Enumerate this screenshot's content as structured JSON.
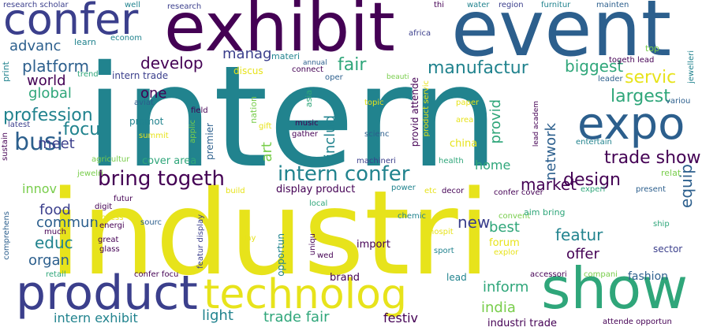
{
  "palette": {
    "dark": "#440154",
    "indigo": "#3b3f8c",
    "blue": "#2c5f8d",
    "teal": "#21838e",
    "green": "#2fa67a",
    "lime": "#78cd4b",
    "yellow": "#e7e31b"
  },
  "words": [
    {
      "text": "intern",
      "color": "#21838e"
    },
    {
      "text": "industri",
      "color": "#e7e31b"
    },
    {
      "text": "event",
      "color": "#2c5f8d"
    },
    {
      "text": "exhibit",
      "color": "#440154"
    },
    {
      "text": "show",
      "color": "#2fa67a"
    },
    {
      "text": "expo",
      "color": "#2c5f8d"
    },
    {
      "text": "product",
      "color": "#3b3f8c"
    },
    {
      "text": "technolog",
      "color": "#e7e31b"
    },
    {
      "text": "confer",
      "color": "#3b3f8c"
    },
    {
      "text": "busi",
      "color": "#2c5f8d"
    },
    {
      "text": "bring togeth",
      "color": "#440154"
    },
    {
      "text": "intern confer",
      "color": "#21838e"
    },
    {
      "text": "trade show",
      "color": "#440154"
    },
    {
      "text": "design",
      "color": "#440154"
    },
    {
      "text": "market",
      "color": "#440154"
    },
    {
      "text": "largest",
      "color": "#2fa67a"
    },
    {
      "text": "servic",
      "color": "#e7e31b"
    },
    {
      "text": "biggest",
      "color": "#2fa67a"
    },
    {
      "text": "manufactur",
      "color": "#21838e"
    },
    {
      "text": "fair",
      "color": "#2fa67a"
    },
    {
      "text": "manag",
      "color": "#3b3f8c"
    },
    {
      "text": "develop",
      "color": "#440154"
    },
    {
      "text": "platform",
      "color": "#2c5f8d"
    },
    {
      "text": "advanc",
      "color": "#2c5f8d"
    },
    {
      "text": "world",
      "color": "#440154"
    },
    {
      "text": "global",
      "color": "#2fa67a"
    },
    {
      "text": "profession",
      "color": "#21838e"
    },
    {
      "text": "focu",
      "color": "#21838e"
    },
    {
      "text": "meet",
      "color": "#3b3f8c"
    },
    {
      "text": "one",
      "color": "#440154"
    },
    {
      "text": "innov",
      "color": "#78cd4b"
    },
    {
      "text": "food",
      "color": "#3b3f8c"
    },
    {
      "text": "commun",
      "color": "#2c5f8d"
    },
    {
      "text": "educ",
      "color": "#21838e"
    },
    {
      "text": "organ",
      "color": "#2c5f8d"
    },
    {
      "text": "new",
      "color": "#3b3f8c"
    },
    {
      "text": "best",
      "color": "#2fa67a"
    },
    {
      "text": "featur",
      "color": "#21838e"
    },
    {
      "text": "offer",
      "color": "#440154"
    },
    {
      "text": "inform",
      "color": "#2fa67a"
    },
    {
      "text": "india",
      "color": "#78cd4b"
    },
    {
      "text": "intern exhibit",
      "color": "#21838e"
    },
    {
      "text": "light",
      "color": "#21838e"
    },
    {
      "text": "trade fair",
      "color": "#2fa67a"
    },
    {
      "text": "festiv",
      "color": "#440154"
    },
    {
      "text": "industri trade",
      "color": "#440154"
    },
    {
      "text": "fashion",
      "color": "#2c5f8d"
    },
    {
      "text": "home",
      "color": "#2fa67a"
    },
    {
      "text": "network",
      "color": "#2c5f8d"
    },
    {
      "text": "provid",
      "color": "#2fa67a"
    },
    {
      "text": "includ",
      "color": "#21838e"
    },
    {
      "text": "art",
      "color": "#78cd4b"
    },
    {
      "text": "equip",
      "color": "#2c5f8d"
    },
    {
      "text": "research scholar",
      "color": "#3b3f8c"
    },
    {
      "text": "well",
      "color": "#21838e"
    },
    {
      "text": "research",
      "color": "#3b3f8c"
    },
    {
      "text": "thi",
      "color": "#440154"
    },
    {
      "text": "water",
      "color": "#21838e"
    },
    {
      "text": "region",
      "color": "#3b3f8c"
    },
    {
      "text": "furnitur",
      "color": "#21838e"
    },
    {
      "text": "mainten",
      "color": "#2c5f8d"
    },
    {
      "text": "learn",
      "color": "#21838e"
    },
    {
      "text": "econom",
      "color": "#21838e"
    },
    {
      "text": "africa",
      "color": "#3b3f8c"
    },
    {
      "text": "top",
      "color": "#78cd4b"
    },
    {
      "text": "togeth lead",
      "color": "#440154"
    },
    {
      "text": "leader",
      "color": "#2c5f8d"
    },
    {
      "text": "jewelleri",
      "color": "#21838e"
    },
    {
      "text": "variou",
      "color": "#2c5f8d"
    },
    {
      "text": "print",
      "color": "#21838e"
    },
    {
      "text": "trend",
      "color": "#2fa67a"
    },
    {
      "text": "intern trade",
      "color": "#3b3f8c"
    },
    {
      "text": "materi",
      "color": "#21838e"
    },
    {
      "text": "discus",
      "color": "#e7e31b"
    },
    {
      "text": "annual",
      "color": "#2c5f8d"
    },
    {
      "text": "connect",
      "color": "#440154"
    },
    {
      "text": "oper",
      "color": "#2c5f8d"
    },
    {
      "text": "beauti",
      "color": "#78cd4b"
    },
    {
      "text": "provid attende",
      "color": "#440154"
    },
    {
      "text": "product servic",
      "color": "#e7e31b"
    },
    {
      "text": "paper",
      "color": "#e7e31b"
    },
    {
      "text": "lead academ",
      "color": "#440154"
    },
    {
      "text": "topic",
      "color": "#e7e31b"
    },
    {
      "text": "aviat",
      "color": "#2c5f8d"
    },
    {
      "text": "field",
      "color": "#440154"
    },
    {
      "text": "nation",
      "color": "#78cd4b"
    },
    {
      "text": "asia",
      "color": "#2fa67a"
    },
    {
      "text": "gift",
      "color": "#e7e31b"
    },
    {
      "text": "music",
      "color": "#440154"
    },
    {
      "text": "gather",
      "color": "#440154"
    },
    {
      "text": "scienc",
      "color": "#2c5f8d"
    },
    {
      "text": "area",
      "color": "#e7e31b"
    },
    {
      "text": "promot",
      "color": "#21838e"
    },
    {
      "text": "summit",
      "color": "#e7e31b"
    },
    {
      "text": "applic",
      "color": "#78cd4b"
    },
    {
      "text": "premier",
      "color": "#2c5f8d"
    },
    {
      "text": "latest",
      "color": "#3b3f8c"
    },
    {
      "text": "china",
      "color": "#e7e31b"
    },
    {
      "text": "entertain",
      "color": "#21838e"
    },
    {
      "text": "sustain",
      "color": "#440154"
    },
    {
      "text": "agricultur",
      "color": "#78cd4b"
    },
    {
      "text": "cover area",
      "color": "#2fa67a"
    },
    {
      "text": "machineri",
      "color": "#3b3f8c"
    },
    {
      "text": "health",
      "color": "#2fa67a"
    },
    {
      "text": "relat",
      "color": "#78cd4b"
    },
    {
      "text": "jewelri",
      "color": "#78cd4b"
    },
    {
      "text": "display product",
      "color": "#440154"
    },
    {
      "text": "power",
      "color": "#21838e"
    },
    {
      "text": "etc",
      "color": "#e7e31b"
    },
    {
      "text": "decor",
      "color": "#440154"
    },
    {
      "text": "confer cover",
      "color": "#440154"
    },
    {
      "text": "experi",
      "color": "#2fa67a"
    },
    {
      "text": "present",
      "color": "#2c5f8d"
    },
    {
      "text": "futur",
      "color": "#440154"
    },
    {
      "text": "digit",
      "color": "#440154"
    },
    {
      "text": "build",
      "color": "#e7e31b"
    },
    {
      "text": "local",
      "color": "#2fa67a"
    },
    {
      "text": "chemic",
      "color": "#21838e"
    },
    {
      "text": "convent",
      "color": "#78cd4b"
    },
    {
      "text": "ship",
      "color": "#2fa67a"
    },
    {
      "text": "comprehens",
      "color": "#2c5f8d"
    },
    {
      "text": "process",
      "color": "#e7e31b"
    },
    {
      "text": "sourc",
      "color": "#2c5f8d"
    },
    {
      "text": "energi",
      "color": "#440154"
    },
    {
      "text": "aim bring",
      "color": "#2fa67a"
    },
    {
      "text": "much",
      "color": "#440154"
    },
    {
      "text": "hospit",
      "color": "#e7e31b"
    },
    {
      "text": "great",
      "color": "#440154"
    },
    {
      "text": "glass",
      "color": "#440154"
    },
    {
      "text": "day",
      "color": "#e7e31b"
    },
    {
      "text": "uniqu",
      "color": "#440154"
    },
    {
      "text": "import",
      "color": "#440154"
    },
    {
      "text": "forum",
      "color": "#e7e31b"
    },
    {
      "text": "sector",
      "color": "#3b3f8c"
    },
    {
      "text": "wed",
      "color": "#440154"
    },
    {
      "text": "sport",
      "color": "#21838e"
    },
    {
      "text": "explor",
      "color": "#e7e31b"
    },
    {
      "text": "featur display",
      "color": "#3b3f8c"
    },
    {
      "text": "opportun",
      "color": "#21838e"
    },
    {
      "text": "retail",
      "color": "#2fa67a"
    },
    {
      "text": "confer focu",
      "color": "#440154"
    },
    {
      "text": "brand",
      "color": "#440154"
    },
    {
      "text": "lead",
      "color": "#21838e"
    },
    {
      "text": "accessori",
      "color": "#440154"
    },
    {
      "text": "compani",
      "color": "#78cd4b"
    },
    {
      "text": "attende opportun",
      "color": "#440154"
    }
  ]
}
